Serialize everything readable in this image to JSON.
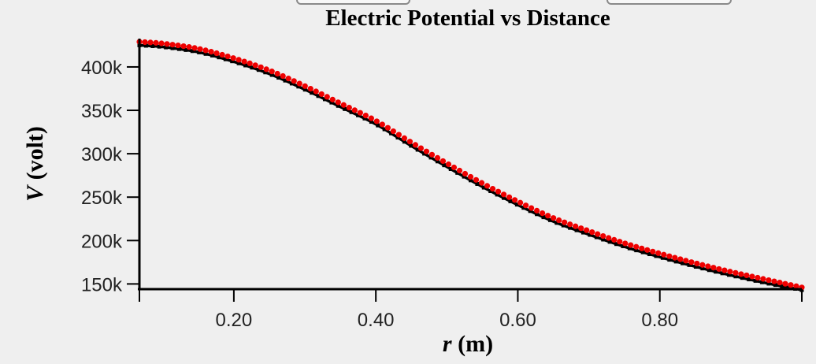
{
  "toolbar": {
    "left_button_label": "",
    "right_button_label": ""
  },
  "chart_data": {
    "type": "scatter",
    "title": "Electric Potential vs Distance",
    "xlabel_var": "r",
    "xlabel_unit": " (m)",
    "ylabel_var": "V",
    "ylabel_unit": " (volt)",
    "xlim": [
      0.067,
      1.0
    ],
    "ylim": [
      144000,
      429000
    ],
    "x_ticks": [
      0.2,
      0.4,
      0.6,
      0.8
    ],
    "x_tick_labels": [
      "0.20",
      "0.40",
      "0.60",
      "0.80"
    ],
    "y_ticks": [
      150000,
      200000,
      250000,
      300000,
      350000,
      400000
    ],
    "y_tick_labels": [
      "150k",
      "200k",
      "250k",
      "300k",
      "350k",
      "400k"
    ],
    "colors": {
      "measured": "#ee0000",
      "model": "#000000"
    },
    "series": [
      {
        "style": "red-dots",
        "x": [
          0.067,
          0.1,
          0.15,
          0.2,
          0.25,
          0.3,
          0.35,
          0.4,
          0.45,
          0.5,
          0.55,
          0.6,
          0.65,
          0.7,
          0.75,
          0.8,
          0.85,
          0.9,
          0.95,
          1.0
        ],
        "y": [
          429000,
          427000,
          421000,
          410000,
          396000,
          378000,
          358000,
          338000,
          313000,
          289000,
          266000,
          245000,
          226000,
          211000,
          197000,
          185000,
          174000,
          164000,
          155000,
          146000
        ]
      },
      {
        "style": "black-line",
        "x": [
          0.067,
          0.1,
          0.15,
          0.2,
          0.25,
          0.3,
          0.35,
          0.4,
          0.45,
          0.5,
          0.55,
          0.6,
          0.65,
          0.7,
          0.75,
          0.8,
          0.85,
          0.9,
          0.95,
          1.0
        ],
        "y": [
          425000,
          423000,
          417000,
          406000,
          392000,
          374000,
          354000,
          334000,
          309000,
          285000,
          262000,
          241000,
          222000,
          207000,
          193000,
          181000,
          170000,
          160000,
          151000,
          143000
        ]
      }
    ]
  }
}
